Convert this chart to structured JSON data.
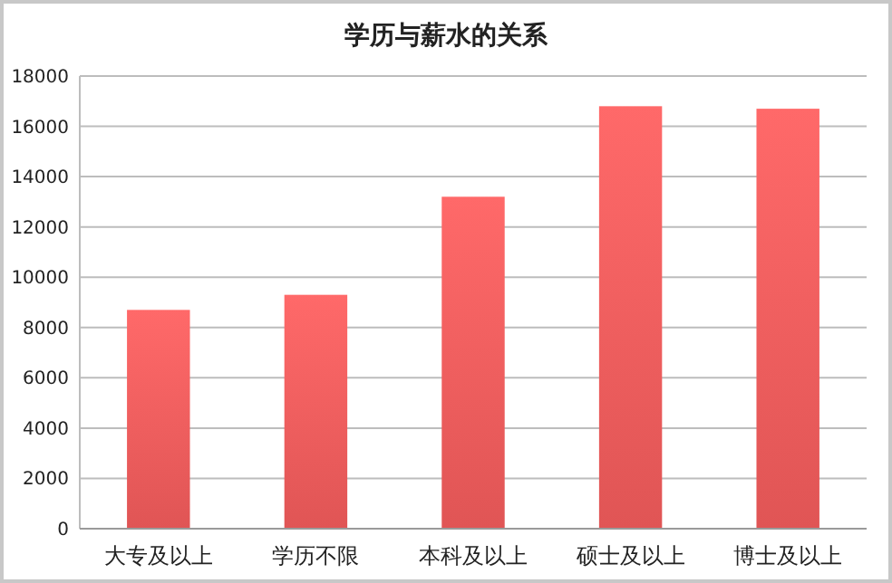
{
  "chart_data": {
    "type": "bar",
    "title": "学历与薪水的关系",
    "categories": [
      "大专及以上",
      "学历不限",
      "本科及以上",
      "硕士及以上",
      "博士及以上"
    ],
    "values": [
      8700,
      9300,
      13200,
      16800,
      16700
    ],
    "color": "#e05555",
    "ylim": [
      0,
      18000
    ],
    "yticks": [
      0,
      2000,
      4000,
      6000,
      8000,
      10000,
      12000,
      14000,
      16000,
      18000
    ],
    "grid": "y"
  }
}
